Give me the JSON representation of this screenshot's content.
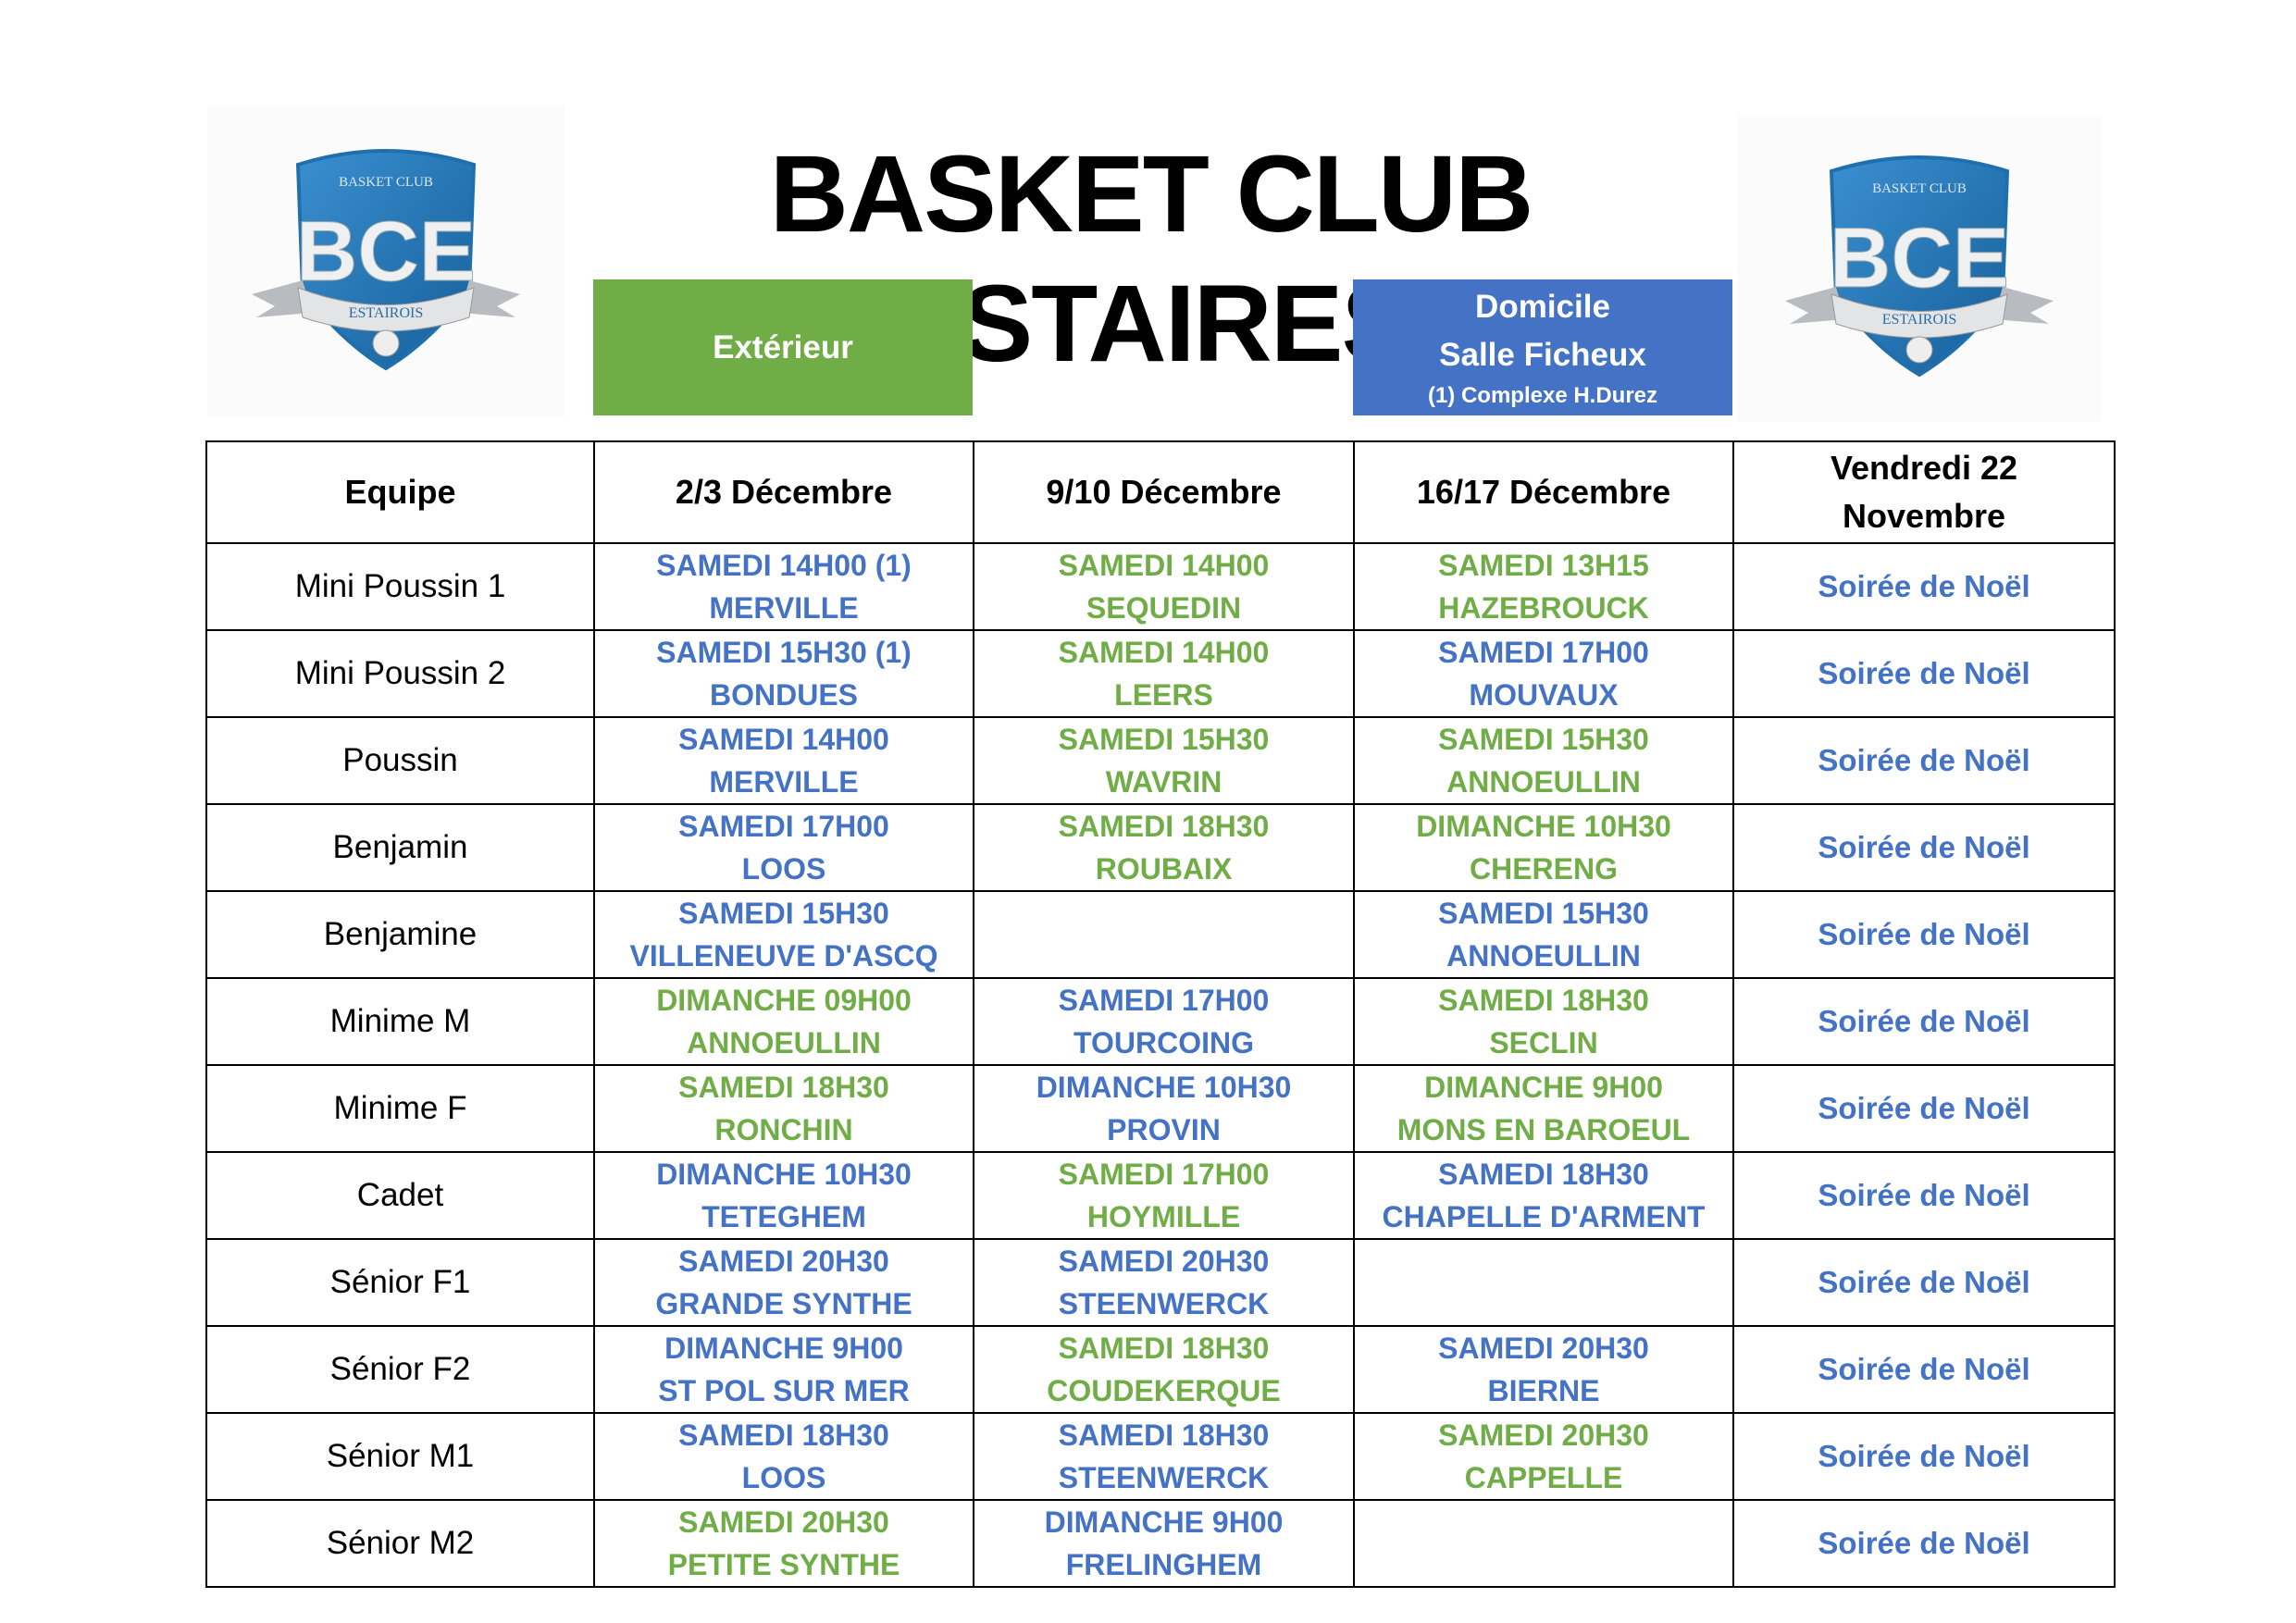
{
  "title": "BASKET CLUB ESTAIRES",
  "logo": {
    "top_text": "BASKET CLUB",
    "letters": "BCE",
    "ribbon_text": "ESTAIROIS"
  },
  "colors": {
    "home": "#4472C4",
    "away": "#70AD47",
    "logo_blue": "#1f6fae"
  },
  "legend": {
    "away": {
      "label": "Extérieur"
    },
    "home": {
      "label": "Domicile",
      "venue": "Salle Ficheux",
      "note": "(1) Complexe H.Durez"
    }
  },
  "table": {
    "headers": [
      "Equipe",
      "2/3 Décembre",
      "9/10 Décembre",
      "16/17 Décembre",
      "Vendredi 22\nNovembre"
    ],
    "header_event_line1": "Vendredi 22",
    "header_event_line2": "Novembre",
    "event_label": "Soirée de Noël",
    "rows": [
      {
        "team": "Mini Poussin 1",
        "matches": [
          {
            "when": "SAMEDI 14H00 (1)",
            "where": "MERVILLE",
            "type": "home"
          },
          {
            "when": "SAMEDI 14H00",
            "where": "SEQUEDIN",
            "type": "away"
          },
          {
            "when": "SAMEDI 13H15",
            "where": "HAZEBROUCK",
            "type": "away"
          }
        ]
      },
      {
        "team": "Mini Poussin 2",
        "matches": [
          {
            "when": "SAMEDI 15H30 (1)",
            "where": "BONDUES",
            "type": "home"
          },
          {
            "when": "SAMEDI 14H00",
            "where": "LEERS",
            "type": "away"
          },
          {
            "when": "SAMEDI 17H00",
            "where": "MOUVAUX",
            "type": "home"
          }
        ]
      },
      {
        "team": "Poussin",
        "matches": [
          {
            "when": "SAMEDI 14H00",
            "where": "MERVILLE",
            "type": "home"
          },
          {
            "when": "SAMEDI 15H30",
            "where": "WAVRIN",
            "type": "away"
          },
          {
            "when": "SAMEDI 15H30",
            "where": "ANNOEULLIN",
            "type": "away"
          }
        ]
      },
      {
        "team": "Benjamin",
        "matches": [
          {
            "when": "SAMEDI 17H00",
            "where": "LOOS",
            "type": "home"
          },
          {
            "when": "SAMEDI 18H30",
            "where": "ROUBAIX",
            "type": "away"
          },
          {
            "when": "DIMANCHE 10H30",
            "where": "CHERENG",
            "type": "away"
          }
        ]
      },
      {
        "team": "Benjamine",
        "matches": [
          {
            "when": "SAMEDI 15H30",
            "where": "VILLENEUVE D'ASCQ",
            "type": "home"
          },
          {
            "when": "",
            "where": "",
            "type": "none"
          },
          {
            "when": "SAMEDI 15H30",
            "where": "ANNOEULLIN",
            "type": "home"
          }
        ]
      },
      {
        "team": "Minime M",
        "matches": [
          {
            "when": "DIMANCHE 09H00",
            "where": "ANNOEULLIN",
            "type": "away"
          },
          {
            "when": "SAMEDI 17H00",
            "where": "TOURCOING",
            "type": "home"
          },
          {
            "when": "SAMEDI 18H30",
            "where": "SECLIN",
            "type": "away"
          }
        ]
      },
      {
        "team": "Minime F",
        "matches": [
          {
            "when": "SAMEDI 18H30",
            "where": "RONCHIN",
            "type": "away"
          },
          {
            "when": "DIMANCHE 10H30",
            "where": "PROVIN",
            "type": "home"
          },
          {
            "when": "DIMANCHE 9H00",
            "where": "MONS EN BAROEUL",
            "type": "away"
          }
        ]
      },
      {
        "team": "Cadet",
        "matches": [
          {
            "when": "DIMANCHE 10H30",
            "where": "TETEGHEM",
            "type": "home"
          },
          {
            "when": "SAMEDI 17H00",
            "where": "HOYMILLE",
            "type": "away"
          },
          {
            "when": "SAMEDI 18H30",
            "where": "CHAPELLE D'ARMENT",
            "type": "home"
          }
        ]
      },
      {
        "team": "Sénior F1",
        "matches": [
          {
            "when": "SAMEDI 20H30",
            "where": "GRANDE SYNTHE",
            "type": "home"
          },
          {
            "when": "SAMEDI 20H30",
            "where": "STEENWERCK",
            "type": "home"
          },
          {
            "when": "",
            "where": "",
            "type": "none"
          }
        ]
      },
      {
        "team": "Sénior F2",
        "matches": [
          {
            "when": "DIMANCHE 9H00",
            "where": "ST POL SUR MER",
            "type": "home"
          },
          {
            "when": "SAMEDI 18H30",
            "where": "COUDEKERQUE",
            "type": "away"
          },
          {
            "when": "SAMEDI 20H30",
            "where": "BIERNE",
            "type": "home"
          }
        ]
      },
      {
        "team": "Sénior M1",
        "matches": [
          {
            "when": "SAMEDI 18H30",
            "where": "LOOS",
            "type": "home"
          },
          {
            "when": "SAMEDI 18H30",
            "where": "STEENWERCK",
            "type": "home"
          },
          {
            "when": "SAMEDI 20H30",
            "where": "CAPPELLE",
            "type": "away"
          }
        ]
      },
      {
        "team": "Sénior M2",
        "matches": [
          {
            "when": "SAMEDI 20H30",
            "where": "PETITE SYNTHE",
            "type": "away"
          },
          {
            "when": "DIMANCHE 9H00",
            "where": "FRELINGHEM",
            "type": "home"
          },
          {
            "when": "",
            "where": "",
            "type": "none"
          }
        ]
      }
    ]
  }
}
